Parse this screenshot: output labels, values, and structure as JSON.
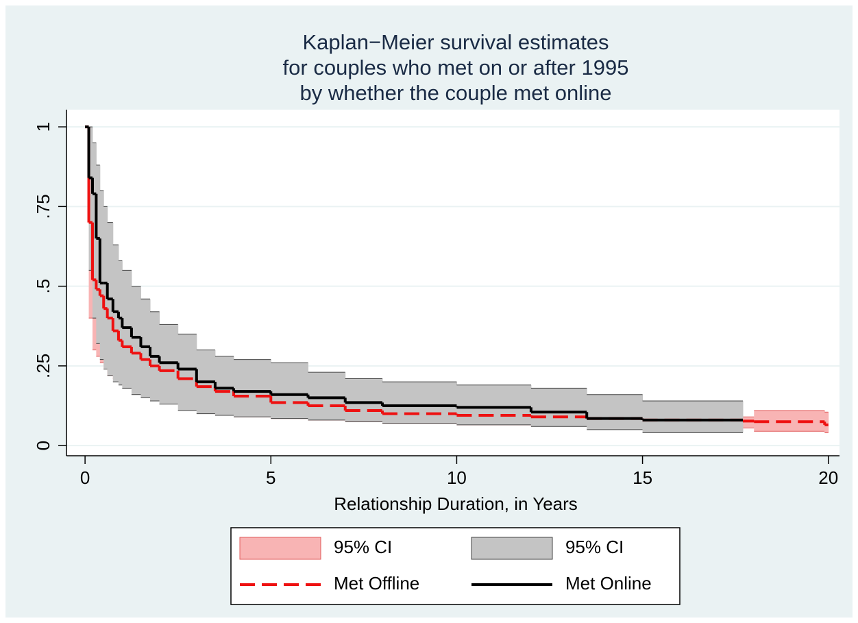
{
  "chart_data": {
    "type": "step",
    "title": [
      "Kaplan−Meier survival estimates",
      "for couples who met on or after 1995",
      "by whether the couple met online"
    ],
    "x_label": "Relationship Duration, in Years",
    "x": [
      0,
      0.1,
      0.2,
      0.3,
      0.4,
      0.5,
      0.6,
      0.75,
      0.9,
      1,
      1.25,
      1.5,
      1.75,
      2,
      2.5,
      3,
      3.5,
      4,
      5,
      6,
      7,
      8,
      10,
      12,
      13.5,
      15,
      17.7,
      18,
      19.9,
      20
    ],
    "bands": [
      {
        "name": "95% CI",
        "color": "#f8b4b4",
        "stroke": "#e05a5a",
        "lower": [
          1,
          0.4,
          0.3,
          0.28,
          0.26,
          0.24,
          0.22,
          0.21,
          0.2,
          0.19,
          0.18,
          0.17,
          0.16,
          0.15,
          0.13,
          0.11,
          0.095,
          0.09,
          0.085,
          0.08,
          0.075,
          0.07,
          0.065,
          0.062,
          0.06,
          0.058,
          0.055,
          0.045,
          0.04,
          null
        ],
        "upper": [
          1,
          0.82,
          0.55,
          0.51,
          0.49,
          0.45,
          0.42,
          0.38,
          0.35,
          0.33,
          0.31,
          0.28,
          0.26,
          0.245,
          0.22,
          0.19,
          0.175,
          0.16,
          0.14,
          0.13,
          0.115,
          0.105,
          0.1,
          0.095,
          0.09,
          0.085,
          0.09,
          0.11,
          0.105,
          null
        ]
      },
      {
        "name": "95% CI",
        "color": "#c4c4c4",
        "stroke": "#444444",
        "lower": [
          1,
          0.55,
          0.4,
          0.32,
          0.27,
          0.24,
          0.22,
          0.2,
          0.19,
          0.18,
          0.16,
          0.15,
          0.14,
          0.13,
          0.11,
          0.1,
          0.095,
          0.09,
          0.085,
          0.08,
          0.075,
          0.07,
          0.065,
          0.06,
          0.05,
          0.04,
          null,
          null,
          null,
          null
        ],
        "upper": [
          1,
          1,
          0.95,
          0.88,
          0.8,
          0.75,
          0.7,
          0.63,
          0.58,
          0.55,
          0.5,
          0.46,
          0.42,
          0.38,
          0.35,
          0.3,
          0.28,
          0.27,
          0.26,
          0.23,
          0.21,
          0.2,
          0.19,
          0.18,
          0.16,
          0.14,
          null,
          null,
          null,
          null
        ]
      }
    ],
    "series": [
      {
        "name": "Met Offline",
        "color": "#ee1111",
        "dashed": true,
        "values": [
          1,
          0.7,
          0.52,
          0.49,
          0.47,
          0.43,
          0.4,
          0.36,
          0.33,
          0.31,
          0.29,
          0.27,
          0.25,
          0.235,
          0.21,
          0.185,
          0.17,
          0.155,
          0.135,
          0.125,
          0.11,
          0.1,
          0.095,
          0.09,
          0.085,
          0.08,
          0.077,
          0.075,
          0.065,
          null
        ]
      },
      {
        "name": "Met Online",
        "color": "#000000",
        "dashed": false,
        "values": [
          1,
          0.84,
          0.79,
          0.65,
          0.51,
          0.51,
          0.46,
          0.42,
          0.4,
          0.37,
          0.34,
          0.31,
          0.28,
          0.26,
          0.24,
          0.2,
          0.18,
          0.17,
          0.16,
          0.15,
          0.135,
          0.125,
          0.12,
          0.105,
          0.085,
          0.08,
          null,
          null,
          null,
          null
        ]
      }
    ],
    "xlim": [
      -0.5,
      20.3
    ],
    "ylim": [
      -0.032,
      1.054
    ],
    "xticks": [
      0,
      5,
      10,
      15,
      20
    ],
    "yticks": [
      0,
      {
        "value": 0.25,
        "label": ".25"
      },
      {
        "value": 0.5,
        "label": ".5"
      },
      {
        "value": 0.75,
        "label": ".75"
      },
      1
    ],
    "grid": true
  }
}
